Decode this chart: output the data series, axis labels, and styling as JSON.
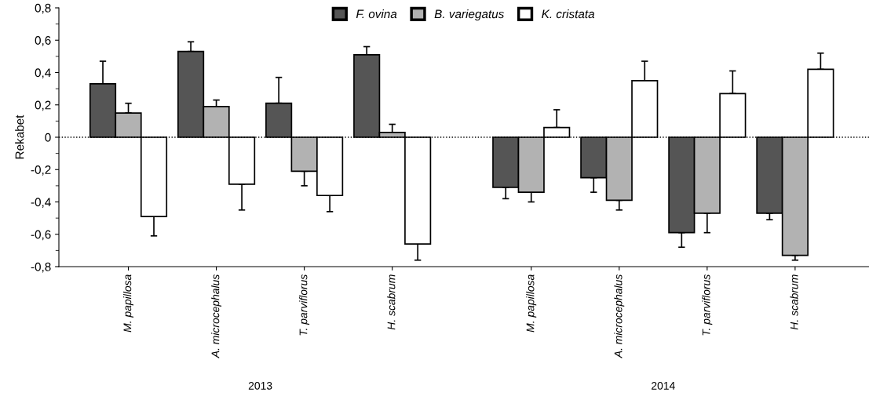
{
  "chart_data": {
    "type": "bar",
    "ylabel": "Rekabet",
    "categories": [
      "M. papillosa",
      "A. microcephalus",
      "T. parviflorus",
      "H. scabrum",
      "M. papillosa",
      "A. microcephalus",
      "T. parviflorus",
      "H. scabrum"
    ],
    "series": [
      {
        "name": "F. ovina",
        "color": "#555555",
        "values": [
          0.33,
          0.53,
          0.21,
          0.51,
          -0.31,
          -0.25,
          -0.59,
          -0.47
        ],
        "errors": [
          [
            0.33,
            0.47
          ],
          [
            0.53,
            0.59
          ],
          [
            0.21,
            0.37
          ],
          [
            0.51,
            0.56
          ],
          [
            -0.38,
            -0.31
          ],
          [
            -0.34,
            -0.25
          ],
          [
            -0.68,
            -0.59
          ],
          [
            -0.51,
            -0.47
          ]
        ]
      },
      {
        "name": "B. variegatus",
        "color": "#b2b2b2",
        "values": [
          0.15,
          0.19,
          -0.21,
          0.03,
          -0.34,
          -0.39,
          -0.47,
          -0.73
        ],
        "errors": [
          [
            0.15,
            0.21
          ],
          [
            0.19,
            0.23
          ],
          [
            -0.3,
            -0.21
          ],
          [
            0.03,
            0.08
          ],
          [
            -0.4,
            -0.34
          ],
          [
            -0.45,
            -0.39
          ],
          [
            -0.59,
            -0.47
          ],
          [
            -0.76,
            -0.73
          ]
        ]
      },
      {
        "name": "K. cristata",
        "color": "#ffffff",
        "values": [
          -0.49,
          -0.29,
          -0.36,
          -0.66,
          0.06,
          0.35,
          0.27,
          0.42
        ],
        "errors": [
          [
            -0.61,
            -0.49
          ],
          [
            -0.45,
            -0.29
          ],
          [
            -0.46,
            -0.36
          ],
          [
            -0.76,
            -0.66
          ],
          [
            0.06,
            0.17
          ],
          [
            0.35,
            0.47
          ],
          [
            0.27,
            0.41
          ],
          [
            0.42,
            0.52
          ]
        ]
      }
    ],
    "ylim": [
      -0.8,
      0.8
    ],
    "yticks": [
      {
        "value": -0.8,
        "label": "-0,8"
      },
      {
        "value": -0.6,
        "label": "-0,6"
      },
      {
        "value": -0.4,
        "label": "-0,4"
      },
      {
        "value": -0.2,
        "label": "-0,2"
      },
      0,
      {
        "value": 0.2,
        "label": "0,2"
      },
      {
        "value": 0.4,
        "label": "0,4"
      },
      {
        "value": 0.6,
        "label": "0,6"
      },
      {
        "value": 0.8,
        "label": "0,8"
      }
    ],
    "ref_lines": [
      {
        "axis": "y",
        "value": 0,
        "line_style": "dotted",
        "color": "#000000"
      }
    ],
    "annotations": [
      "2013",
      "2014"
    ],
    "legend": "top",
    "grid": false
  }
}
